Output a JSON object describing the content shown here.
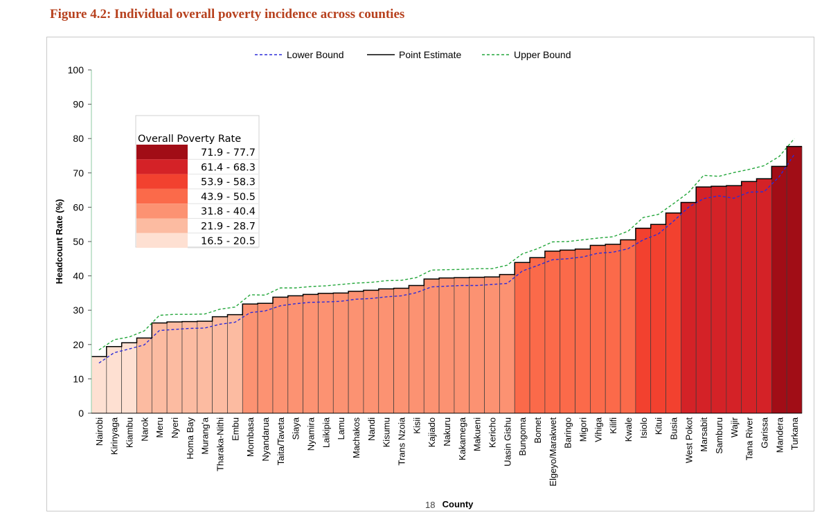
{
  "figure_title": "Figure 4.2: Individual overall poverty incidence across counties",
  "page_number": "18",
  "chart_data": {
    "type": "bar",
    "title": "Figure 4.2: Individual overall poverty incidence across counties",
    "xlabel": "County",
    "ylabel": "Headcount Rate (%)",
    "ylim": [
      0,
      100
    ],
    "yticks": [
      "0",
      "10",
      "20",
      "30",
      "40",
      "50",
      "60",
      "70",
      "80",
      "90",
      "100"
    ],
    "categories": [
      "Nairobi",
      "Kirinyaga",
      "Kiambu",
      "Narok",
      "Meru",
      "Nyeri",
      "Homa Bay",
      "Murang'a",
      "Tharaka-Nithi",
      "Embu",
      "Mombasa",
      "Nyandarua",
      "Taita/Taveta",
      "Siaya",
      "Nyamira",
      "Laikipia",
      "Lamu",
      "Machakos",
      "Nandi",
      "Kisumu",
      "Trans Nzoia",
      "Kisii",
      "Kajiado",
      "Nakuru",
      "Kakamega",
      "Makueni",
      "Kericho",
      "Uasin Gishu",
      "Bungoma",
      "Bomet",
      "Elgeyo/Marakwet",
      "Baringo",
      "Migori",
      "Vihiga",
      "Kilifi",
      "Kwale",
      "Isiolo",
      "Kitui",
      "Busia",
      "West Pokot",
      "Marsabit",
      "Samburu",
      "Wajir",
      "Tana River",
      "Garissa",
      "Mandera",
      "Turkana"
    ],
    "series": [
      {
        "name": "Lower Bound",
        "style": "dashed",
        "color": "#2b2bd9",
        "values": [
          14.6,
          17.6,
          18.7,
          19.9,
          24.1,
          24.4,
          24.7,
          24.8,
          25.9,
          26.5,
          29.3,
          29.8,
          31.3,
          31.9,
          32.3,
          32.4,
          32.6,
          33.2,
          33.4,
          33.9,
          34.2,
          35.1,
          36.8,
          37.0,
          37.2,
          37.2,
          37.5,
          37.8,
          41.4,
          43.0,
          44.7,
          45.0,
          45.5,
          46.6,
          46.9,
          47.9,
          50.5,
          52.2,
          55.9,
          60.0,
          62.5,
          63.3,
          62.6,
          64.4,
          64.5,
          68.9,
          75.4
        ]
      },
      {
        "name": "Point Estimate",
        "style": "solid",
        "color": "#000000",
        "values": [
          16.5,
          19.4,
          20.5,
          21.9,
          26.3,
          26.6,
          26.7,
          26.8,
          28.1,
          28.7,
          31.8,
          32.0,
          33.8,
          34.2,
          34.6,
          34.9,
          35.0,
          35.5,
          35.8,
          36.2,
          36.4,
          37.2,
          39.1,
          39.4,
          39.5,
          39.6,
          39.7,
          40.4,
          43.9,
          45.3,
          47.2,
          47.5,
          47.8,
          48.9,
          49.2,
          50.5,
          53.9,
          55.0,
          58.3,
          61.4,
          65.9,
          66.1,
          66.3,
          67.5,
          68.3,
          71.9,
          77.7
        ]
      },
      {
        "name": "Upper Bound",
        "style": "dashed",
        "color": "#22a63a",
        "values": [
          18.4,
          21.4,
          22.2,
          24.0,
          28.5,
          28.8,
          28.8,
          28.9,
          30.3,
          30.9,
          34.5,
          34.4,
          36.5,
          36.5,
          36.9,
          37.1,
          37.5,
          37.9,
          38.1,
          38.6,
          38.7,
          39.5,
          41.7,
          41.8,
          41.9,
          42.1,
          42.1,
          43.1,
          46.4,
          47.9,
          49.9,
          50.0,
          50.5,
          51.0,
          51.4,
          53.0,
          57.0,
          57.9,
          61.0,
          64.3,
          69.3,
          69.0,
          70.1,
          71.0,
          72.1,
          74.8,
          80.0
        ]
      }
    ],
    "legend": {
      "placement": "top-center",
      "entries": [
        "Lower Bound",
        "Point Estimate",
        "Upper Bound"
      ]
    },
    "color_legend": {
      "title": "Overall Poverty Rate",
      "placement": "upper-left",
      "classes": [
        {
          "range": "71.9 - 77.7",
          "min": 71.9,
          "color": "#a10d16"
        },
        {
          "range": "61.4 - 68.3",
          "min": 61.4,
          "color": "#d42227"
        },
        {
          "range": "53.9 - 58.3",
          "min": 53.9,
          "color": "#f2412f"
        },
        {
          "range": "43.9 - 50.5",
          "min": 43.9,
          "color": "#fb6a4a"
        },
        {
          "range": "31.8 - 40.4",
          "min": 31.8,
          "color": "#fc9272"
        },
        {
          "range": "21.9 - 28.7",
          "min": 21.9,
          "color": "#fcbba1"
        },
        {
          "range": "16.5 - 20.5",
          "min": 16.5,
          "color": "#fee0d2"
        }
      ]
    }
  }
}
